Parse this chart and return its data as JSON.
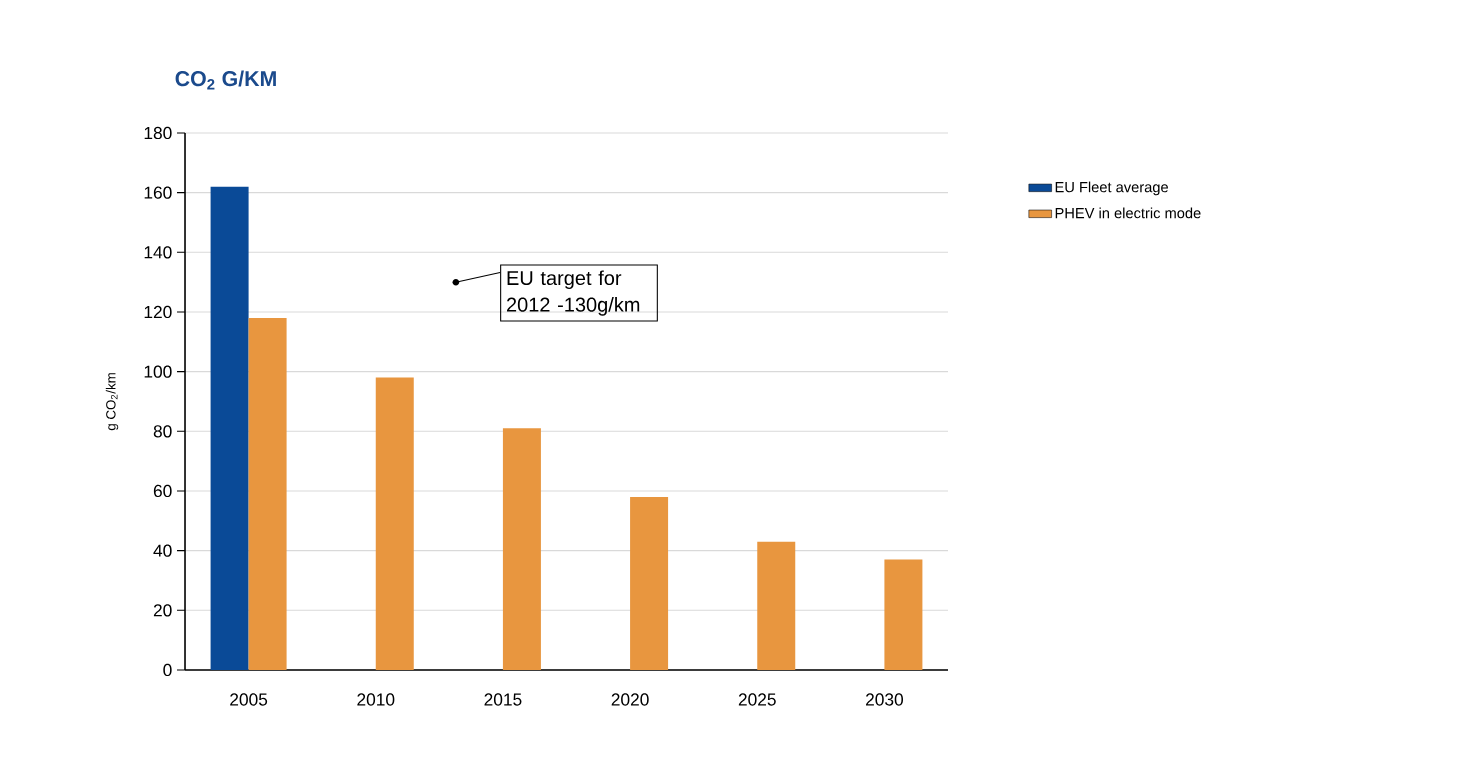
{
  "chart_data": {
    "type": "bar",
    "title": "CO$_{2}$ G/KM",
    "ylabel": "g CO$_{2}$/km",
    "categories": [
      "2005",
      "2010",
      "2015",
      "2020",
      "2025",
      "2030"
    ],
    "series": [
      {
        "name": "EU Fleet average",
        "color": "#0a4a97",
        "values": [
          162,
          null,
          null,
          null,
          null,
          null
        ]
      },
      {
        "name": "PHEV in electric mode",
        "color": "#e8963f",
        "values": [
          118,
          98,
          81,
          58,
          43,
          37
        ]
      }
    ],
    "ylim": [
      0,
      180
    ],
    "yticks": [
      0,
      20,
      40,
      60,
      80,
      100,
      120,
      140,
      160,
      180
    ],
    "grid": "y",
    "legend": "top right",
    "annotations": [
      "EU target for 2012 -130g/km"
    ]
  }
}
